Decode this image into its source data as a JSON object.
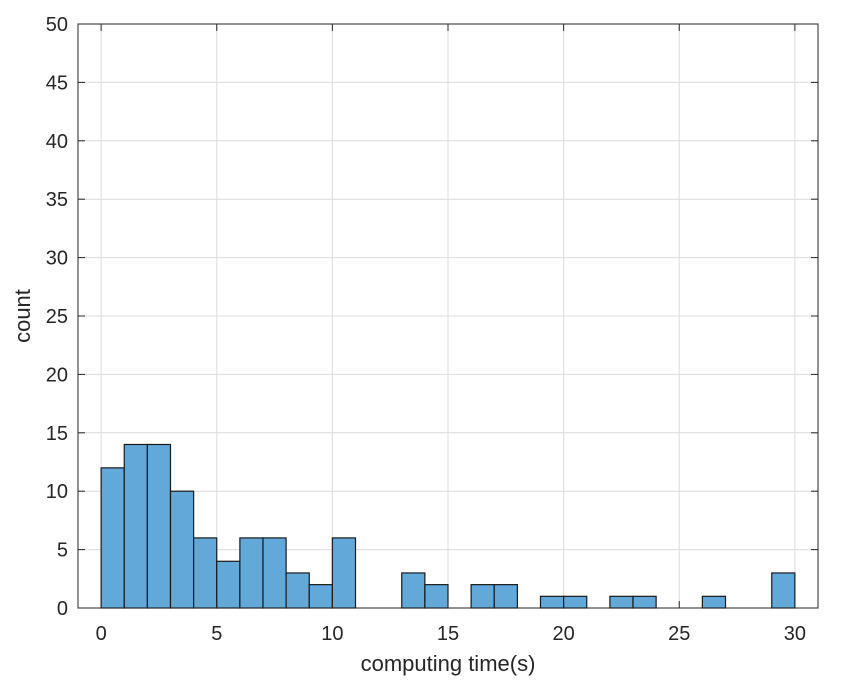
{
  "chart_data": {
    "type": "bar",
    "subtype": "histogram",
    "title": "",
    "xlabel": "computing time(s)",
    "ylabel": "count",
    "xlim": [
      -1,
      31
    ],
    "ylim": [
      0,
      50
    ],
    "grid": true,
    "bar_color": "#62a8d9",
    "bar_edge_color": "#1a1a1a",
    "x_ticks": [
      0,
      5,
      10,
      15,
      20,
      25,
      30
    ],
    "y_ticks": [
      0,
      5,
      10,
      15,
      20,
      25,
      30,
      35,
      40,
      45,
      50
    ],
    "bin_width": 1,
    "bin_starts": [
      0,
      1,
      2,
      3,
      4,
      5,
      6,
      7,
      8,
      9,
      10,
      11,
      12,
      13,
      14,
      15,
      16,
      17,
      18,
      19,
      20,
      21,
      22,
      23,
      24,
      25,
      26,
      27,
      28,
      29
    ],
    "values": [
      12,
      14,
      14,
      10,
      6,
      4,
      6,
      6,
      3,
      2,
      6,
      0,
      0,
      3,
      2,
      0,
      2,
      2,
      0,
      1,
      1,
      0,
      1,
      1,
      0,
      0,
      1,
      0,
      0,
      3
    ]
  }
}
